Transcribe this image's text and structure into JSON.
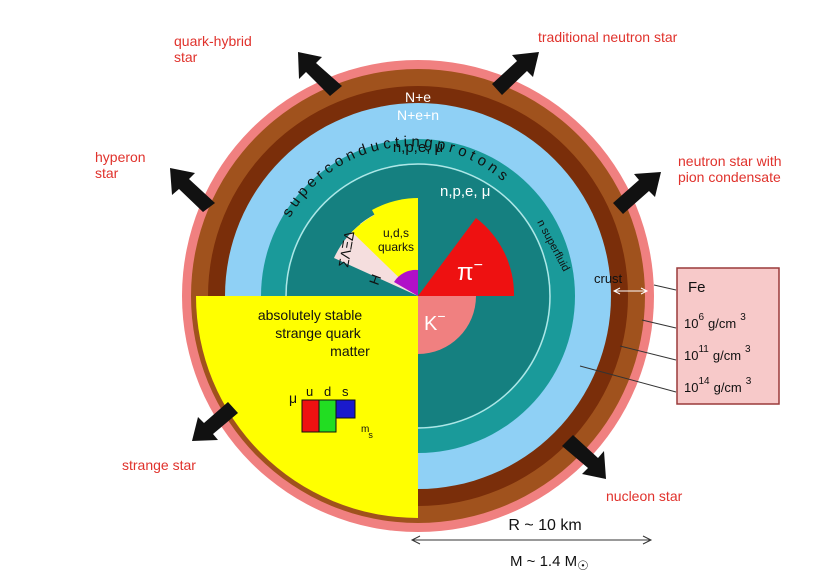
{
  "labels": {
    "quark_hybrid_1": "quark-hybrid",
    "quark_hybrid_2": "star",
    "traditional_neutron": "traditional neutron star",
    "hyperon_1": "hyperon",
    "hyperon_2": "star",
    "neutron_pion_1": "neutron star with",
    "neutron_pion_2": "pion condensate",
    "strange_star": "strange star",
    "nucleon_star": "nucleon star"
  },
  "layers": {
    "ne": "N+e",
    "nen": "N+e+n",
    "npe_mu_outer": "n,p,e, μ",
    "superconducting_protons": "s u p e r c o n d u c t i n g   p r o t o n s",
    "n_superfluid": "n superfluid",
    "npe_mu_inner": "n,p,e, μ",
    "uds_line1": "u,d,s",
    "uds_line2": "quarks",
    "hyperons": "ΣΛΞΔ",
    "h_dibaryon": "H",
    "pion": "π",
    "kaon": "K",
    "pion_sign": "−",
    "kaon_sign": "−"
  },
  "strange_matter": {
    "line1": "absolutely stable",
    "line2": "strange quark",
    "line3": "matter",
    "mu": "μ",
    "u": "u",
    "d": "d",
    "s": "s",
    "ms_m": "m",
    "ms_s": "s"
  },
  "density_box": {
    "crust": "crust",
    "fe": "Fe",
    "rows": [
      {
        "base": "10",
        "exp": "6",
        "unit": "g/cm",
        "unit_exp": "3"
      },
      {
        "base": "10",
        "exp": "11",
        "unit": "g/cm",
        "unit_exp": "3"
      },
      {
        "base": "10",
        "exp": "14",
        "unit": "g/cm",
        "unit_exp": "3"
      }
    ]
  },
  "scale": {
    "radius": "R ~ 10 km",
    "mass": "M ~ 1.4 M",
    "sun_symbol": "☉"
  },
  "colors": {
    "outer_pink": "#f08080",
    "dark_brown": "#7a2e0a",
    "brown": "#a0521d",
    "light_blue": "#8fd0f5",
    "teal": "#1a9a9a",
    "dark_teal": "#158080",
    "yellow": "#ffff00",
    "red_sector": "#ee1111",
    "kaon_pink": "#f08080",
    "hyperon_pink": "#f5dede",
    "purple": "#b010c8",
    "box_pink": "#f7c9c9",
    "label_red": "#e0322c"
  }
}
